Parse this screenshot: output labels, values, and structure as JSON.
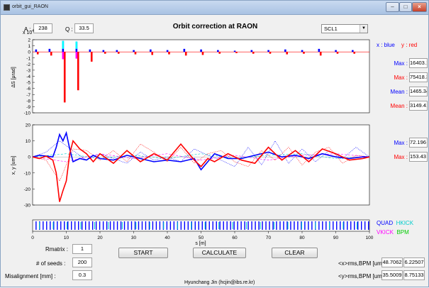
{
  "window": {
    "title": "orbit_gui_RAON"
  },
  "header": {
    "a_label": "A :",
    "a_value": "238",
    "q_label": "Q :",
    "q_value": "33.5",
    "title": "Orbit correction at RAON",
    "section_selected": "SCL1"
  },
  "plot1": {
    "exponent_label": "x 10",
    "exponent": "4",
    "ylabel": "ΔS [μrad]",
    "yticks": [
      "2",
      "1",
      "0",
      "-1",
      "-2",
      "-3",
      "-4",
      "-5",
      "-6",
      "-7",
      "-8",
      "-9",
      "-10"
    ],
    "legend_x": "x : blue",
    "legend_y": "y : red",
    "stats": [
      {
        "label": "Max :",
        "value": "16403.1",
        "color": "#0000ff"
      },
      {
        "label": "Max :",
        "value": "75418.3",
        "color": "#ff0000"
      },
      {
        "label": "Mean :",
        "value": "1465.34",
        "color": "#0000ff"
      },
      {
        "label": "Mean :",
        "value": "3149.41",
        "color": "#ff0000"
      }
    ]
  },
  "plot2": {
    "ylabel": "x, y [um]",
    "yticks": [
      "20",
      "10",
      "0",
      "-10",
      "-20",
      "-30"
    ],
    "stats": [
      {
        "label": "Max :",
        "value": "72.196",
        "color": "#0000ff"
      },
      {
        "label": "Max :",
        "value": "153.43",
        "color": "#ff0000"
      }
    ]
  },
  "lattice": {
    "xlabel": "s [m]",
    "xticks": [
      "0",
      "10",
      "20",
      "30",
      "40",
      "50",
      "60",
      "70",
      "80",
      "90",
      "100"
    ],
    "legend": [
      {
        "text": "QUAD",
        "color": "#0000ff"
      },
      {
        "text": "HKICK",
        "color": "#00cccc"
      },
      {
        "text": "VKICK",
        "color": "#ff00ff"
      },
      {
        "text": "BPM",
        "color": "#00cc00"
      }
    ]
  },
  "controls": {
    "rmatrix_label": "Rmatrix :",
    "rmatrix_value": "1",
    "seeds_label": "# of seeds :",
    "seeds_value": "200",
    "misalignment_label": "Misalignment [mm] :",
    "misalignment_value": "0.3",
    "start_label": "START",
    "calculate_label": "CALCULATE",
    "clear_label": "CLEAR"
  },
  "rms": {
    "x_label": "<x>rms,BPM [um] :",
    "x_before": "48.7062",
    "x_after": "6.22507",
    "y_label": "<y>rms,BPM [um] :",
    "y_before": "35.5009",
    "y_after": "8.75133"
  },
  "footer": {
    "author": "Hyunchang Jin (hcjin@ibs.re.kr)"
  },
  "chart_data": [
    {
      "type": "bar",
      "ylabel": "ΔS [μrad]",
      "y_multiplier": "x 10^4",
      "ylim": [
        -10,
        2
      ],
      "xlim": [
        0,
        100
      ],
      "series": [
        {
          "name": "x : blue",
          "x": [
            1,
            5,
            9,
            13,
            17,
            21,
            25,
            30,
            35,
            40,
            45,
            50,
            55,
            60,
            65,
            70,
            75,
            80,
            85,
            90,
            95
          ],
          "values": [
            0.4,
            0.5,
            1.8,
            1.7,
            0.4,
            0.3,
            0.3,
            0.3,
            0.4,
            0.3,
            0.5,
            0.4,
            0.3,
            0.2,
            0.3,
            0.3,
            0.4,
            0.3,
            0.5,
            0.3,
            0.3
          ]
        },
        {
          "name": "y : red",
          "x": [
            1.5,
            5.5,
            9.5,
            13.5,
            17.5,
            21.5,
            25.5,
            30.5,
            35.5,
            40.5,
            45.5,
            50.5,
            55.5,
            60.5,
            65.5,
            70.5,
            75.5,
            80.5,
            85.5,
            90.5,
            95.5
          ],
          "values": [
            -0.4,
            -0.6,
            -8.3,
            -6.3,
            -1.6,
            -0.3,
            -0.3,
            -0.4,
            -0.5,
            -0.4,
            -0.6,
            -0.5,
            -0.3,
            -0.2,
            -0.3,
            -0.3,
            -0.4,
            -0.3,
            -0.6,
            -0.3,
            -0.3
          ]
        }
      ]
    },
    {
      "type": "line",
      "ylabel": "x, y [um]",
      "xlabel": "s [m]",
      "ylim": [
        -30,
        20
      ],
      "xlim": [
        0,
        100
      ],
      "series": [
        {
          "name": "x : blue",
          "style": "solid",
          "x": [
            0,
            2,
            4,
            6,
            7,
            8,
            9,
            10,
            11,
            12,
            14,
            16,
            18,
            20,
            24,
            28,
            32,
            36,
            40,
            44,
            48,
            50,
            52,
            54,
            58,
            62,
            66,
            70,
            74,
            78,
            82,
            86,
            90,
            94,
            98,
            100
          ],
          "values": [
            0,
            1,
            0.5,
            0,
            6,
            14,
            10,
            15,
            5,
            -3,
            -1,
            -2,
            1,
            -1,
            -2,
            1,
            -1,
            -3,
            -2,
            -3,
            -1,
            -8,
            -3,
            2,
            -1,
            -1,
            1,
            3,
            0,
            1,
            -1,
            2,
            0,
            -1,
            0,
            0
          ]
        },
        {
          "name": "y : red",
          "style": "solid",
          "x": [
            0,
            2,
            4,
            6,
            7,
            8,
            9,
            10,
            11,
            12,
            14,
            16,
            18,
            20,
            24,
            28,
            32,
            36,
            40,
            44,
            48,
            50,
            52,
            54,
            58,
            62,
            66,
            70,
            74,
            78,
            82,
            86,
            90,
            94,
            98,
            100
          ],
          "values": [
            0,
            -1,
            0.5,
            -2,
            -10,
            -28,
            -21,
            -15,
            2,
            10,
            5,
            2,
            -3,
            2,
            -4,
            4,
            -3,
            2,
            -2,
            8,
            -2,
            -6,
            -1,
            -3,
            2,
            -2,
            -4,
            6,
            -2,
            4,
            -3,
            5,
            2,
            -2,
            -1,
            0
          ]
        },
        {
          "name": "x before (dotted blue)",
          "style": "dotted",
          "x": [
            0,
            4,
            8,
            12,
            16,
            20,
            24,
            28,
            32,
            36,
            40,
            44,
            48,
            52,
            56,
            60,
            64,
            68,
            72,
            76,
            80,
            84,
            88,
            92,
            96,
            100
          ],
          "values": [
            0,
            3,
            10,
            4,
            -2,
            2,
            -1,
            -4,
            3,
            -2,
            0,
            -3,
            5,
            1,
            -2,
            -6,
            6,
            -5,
            10,
            -4,
            5,
            -3,
            4,
            -1,
            6,
            0
          ]
        },
        {
          "name": "y before (dotted red)",
          "style": "dotted",
          "x": [
            0,
            4,
            8,
            12,
            16,
            20,
            24,
            28,
            32,
            36,
            40,
            44,
            48,
            52,
            56,
            60,
            64,
            68,
            72,
            76,
            80,
            84,
            88,
            92,
            96,
            100
          ],
          "values": [
            0,
            -2,
            -15,
            5,
            4,
            -2,
            4,
            -3,
            8,
            3,
            -3,
            6,
            -4,
            2,
            4,
            -3,
            -6,
            4,
            -2,
            6,
            -5,
            3,
            6,
            -4,
            1,
            0
          ]
        },
        {
          "name": "x after (dashed cyan)",
          "style": "dashed",
          "x": [
            0,
            10,
            20,
            30,
            40,
            50,
            60,
            70,
            80,
            90,
            100
          ],
          "values": [
            0,
            2,
            -1,
            1,
            -1,
            2,
            -1,
            1,
            2,
            -1,
            0
          ]
        },
        {
          "name": "y after (dashed magenta)",
          "style": "dashed",
          "x": [
            0,
            10,
            20,
            30,
            40,
            50,
            60,
            70,
            80,
            90,
            100
          ],
          "values": [
            0,
            -3,
            2,
            -1,
            2,
            -2,
            1,
            -2,
            1,
            2,
            0
          ]
        }
      ]
    }
  ]
}
